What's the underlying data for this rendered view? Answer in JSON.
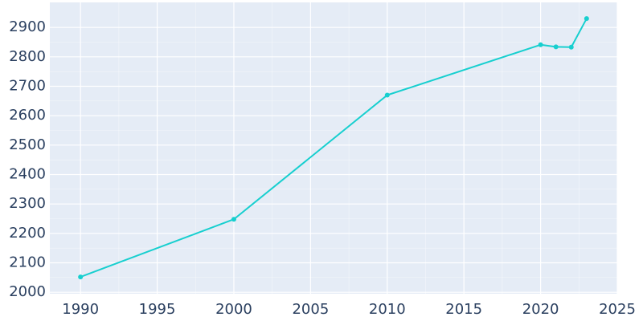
{
  "chart_data": {
    "type": "line",
    "title": "",
    "xlabel": "",
    "ylabel": "",
    "xlim": [
      1988,
      2025
    ],
    "ylim": [
      1995,
      2985
    ],
    "x_ticks": [
      1990,
      1995,
      2000,
      2005,
      2010,
      2015,
      2020,
      2025
    ],
    "y_ticks": [
      2000,
      2100,
      2200,
      2300,
      2400,
      2500,
      2600,
      2700,
      2800,
      2900
    ],
    "grid": true,
    "legend": "none",
    "colors": {
      "line": "#17cfcf",
      "plot_bg": "#e5ecf6",
      "grid": "#ffffff",
      "tick_text": "#2a3f5f"
    },
    "series": [
      {
        "x": [
          1990,
          2000,
          2010,
          2020,
          2021,
          2022,
          2023
        ],
        "y": [
          2052,
          2248,
          2670,
          2841,
          2834,
          2833,
          2930
        ]
      }
    ]
  }
}
